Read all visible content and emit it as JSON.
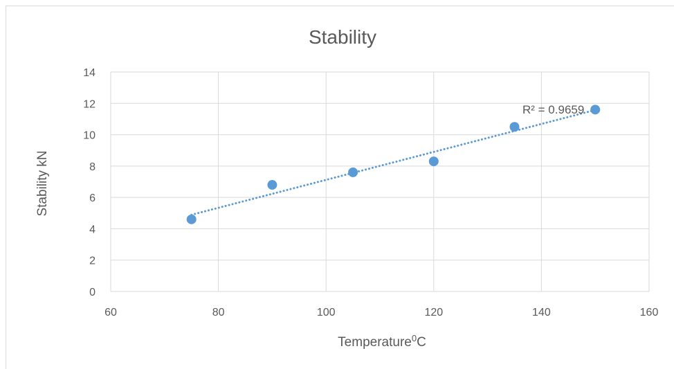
{
  "chart_data": {
    "type": "scatter",
    "title": "Stability",
    "xlabel": "Temperature",
    "xlabel_sup": "0",
    "xlabel_suffix": "C",
    "ylabel": "Stability  kN",
    "xlim": [
      60,
      160
    ],
    "ylim": [
      0,
      14
    ],
    "xticks": [
      60,
      80,
      100,
      120,
      140,
      160
    ],
    "yticks": [
      0,
      2,
      4,
      6,
      8,
      10,
      12,
      14
    ],
    "grid": true,
    "series": [
      {
        "x": [
          75,
          90,
          105,
          120,
          135,
          150
        ],
        "y": [
          4.6,
          6.8,
          7.6,
          8.3,
          10.5,
          11.6
        ],
        "color": "#5b9bd5"
      }
    ],
    "trendline": {
      "type": "linear",
      "style": "dotted",
      "color": "#5b9bd5",
      "x_range": [
        75,
        150
      ],
      "r_squared_label": "R² = 0.9659"
    }
  }
}
